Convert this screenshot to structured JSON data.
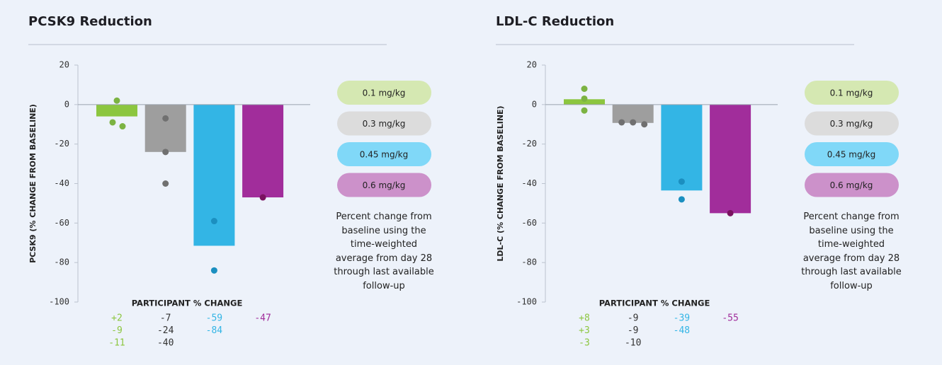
{
  "chart_data": [
    {
      "type": "bar",
      "title": "PCSK9 Reduction",
      "y_label": "PCSK9 (% CHANGE FROM BASELINE)",
      "categories": [
        "0.1 mg/kg",
        "0.3 mg/kg",
        "0.45 mg/kg",
        "0.6 mg/kg"
      ],
      "values": [
        -6,
        -24,
        -71.5,
        -47
      ],
      "colors": [
        "#8cc63f",
        "#9e9e9e",
        "#33b5e5",
        "#a12d9b"
      ],
      "legend_colors": [
        "#d5e8b2",
        "#dcdcdc",
        "#80d8f8",
        "#cc91ca"
      ],
      "dot_colors": [
        "#7cb342",
        "#707070",
        "#1b8fc0",
        "#7a1260"
      ],
      "label_colors": [
        "#8cc63f",
        "#333333",
        "#33b5e5",
        "#a12d9b"
      ],
      "ylim": [
        -100,
        20
      ],
      "yticks": [
        20,
        0,
        -20,
        -40,
        -60,
        -80,
        -100
      ],
      "participants": {
        "title": "PARTICIPANT % CHANGE",
        "values": [
          [
            2,
            -9,
            -11
          ],
          [
            -7,
            -24,
            -40
          ],
          [
            -59,
            -84
          ],
          [
            -47
          ]
        ],
        "value_labels": [
          [
            "+2",
            "-9",
            "-11"
          ],
          [
            "-7",
            "-24",
            "-40"
          ],
          [
            "-59",
            "-84"
          ],
          [
            "-47"
          ]
        ]
      },
      "note": "Percent change from baseline using the time-weighted average from day 28 through last available follow-up"
    },
    {
      "type": "bar",
      "title": "LDL-C Reduction",
      "y_label": "LDL-C (% CHANGE FROM BASELINE)",
      "categories": [
        "0.1 mg/kg",
        "0.3 mg/kg",
        "0.45 mg/kg",
        "0.6 mg/kg"
      ],
      "values": [
        2.7,
        -9.3,
        -43.5,
        -55
      ],
      "colors": [
        "#8cc63f",
        "#9e9e9e",
        "#33b5e5",
        "#a12d9b"
      ],
      "legend_colors": [
        "#d5e8b2",
        "#dcdcdc",
        "#80d8f8",
        "#cc91ca"
      ],
      "dot_colors": [
        "#7cb342",
        "#707070",
        "#1b8fc0",
        "#7a1260"
      ],
      "label_colors": [
        "#8cc63f",
        "#333333",
        "#33b5e5",
        "#a12d9b"
      ],
      "ylim": [
        -100,
        20
      ],
      "yticks": [
        20,
        0,
        -20,
        -40,
        -60,
        -80,
        -100
      ],
      "participants": {
        "title": "PARTICIPANT % CHANGE",
        "values": [
          [
            8,
            3,
            -3
          ],
          [
            -9,
            -9,
            -10
          ],
          [
            -39,
            -48
          ],
          [
            -55
          ]
        ],
        "value_labels": [
          [
            "+8",
            "+3",
            "-3"
          ],
          [
            "-9",
            "-9",
            "-10"
          ],
          [
            "-39",
            "-48"
          ],
          [
            "-55"
          ]
        ]
      },
      "note": "Percent change from baseline using the time-weighted average from day 28 through last available follow-up"
    }
  ]
}
